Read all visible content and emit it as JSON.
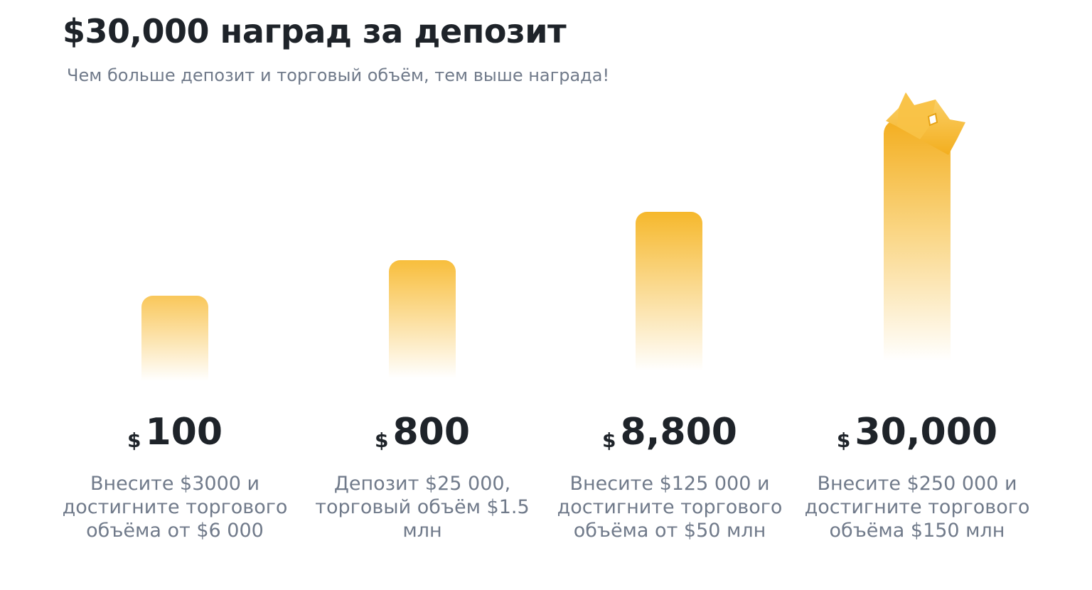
{
  "header": {
    "title": "$30,000 наград за депозит",
    "subtitle": "Чем больше депозит и торговый объём, тем выше награда!"
  },
  "colors": {
    "accent": "#F6B82C",
    "title": "#1E2329",
    "muted": "#707A8A"
  },
  "crown_icon": "crown-icon",
  "tiers": [
    {
      "currency": "$",
      "amount": "100",
      "description": "Внесите $3000 и достигните торгового объёма от $6 000"
    },
    {
      "currency": "$",
      "amount": "800",
      "description": "Депозит $25 000, торговый объём $1.5 млн"
    },
    {
      "currency": "$",
      "amount": "8,800",
      "description": "Внесите $125 000 и достигните торгового объёма от $50 млн"
    },
    {
      "currency": "$",
      "amount": "30,000",
      "description": "Внесите $250 000 и достигните торгового объёма $150 млн"
    }
  ]
}
